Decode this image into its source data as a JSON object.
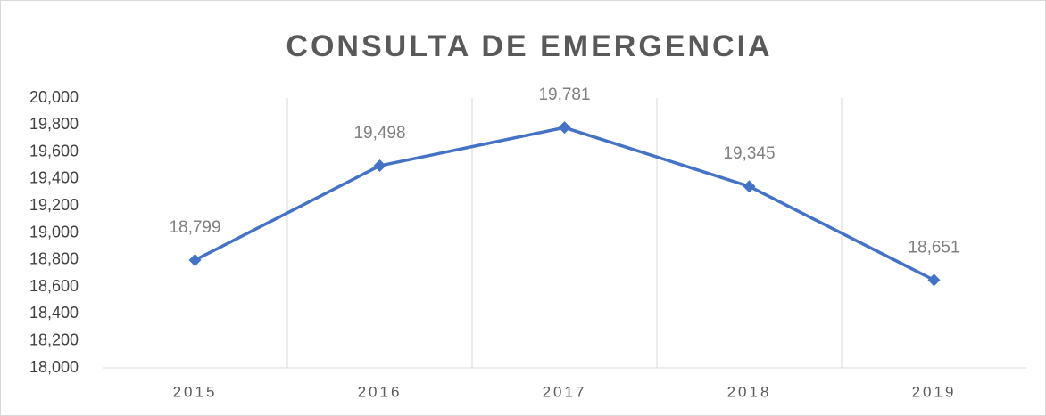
{
  "chart_data": {
    "type": "line",
    "title": "CONSULTA DE EMERGENCIA",
    "categories": [
      "2015",
      "2016",
      "2017",
      "2018",
      "2019"
    ],
    "series": [
      {
        "name": "Consulta de emergencia",
        "color": "#4472c4",
        "values": [
          18799,
          19498,
          19781,
          19345,
          18651
        ],
        "value_labels": [
          "18,799",
          "19,498",
          "19,781",
          "19,345",
          "18,651"
        ]
      }
    ],
    "ylim": [
      18000,
      20000
    ],
    "yticks": [
      {
        "value": 18000,
        "label": "18,000"
      },
      {
        "value": 18200,
        "label": "18,200"
      },
      {
        "value": 18400,
        "label": "18,400"
      },
      {
        "value": 18600,
        "label": "18,600"
      },
      {
        "value": 18800,
        "label": "18,800"
      },
      {
        "value": 19000,
        "label": "19,000"
      },
      {
        "value": 19200,
        "label": "19,200"
      },
      {
        "value": 19400,
        "label": "19,400"
      },
      {
        "value": 19600,
        "label": "19,600"
      },
      {
        "value": 19800,
        "label": "19,800"
      },
      {
        "value": 20000,
        "label": "20,000"
      }
    ],
    "grid": "x"
  }
}
